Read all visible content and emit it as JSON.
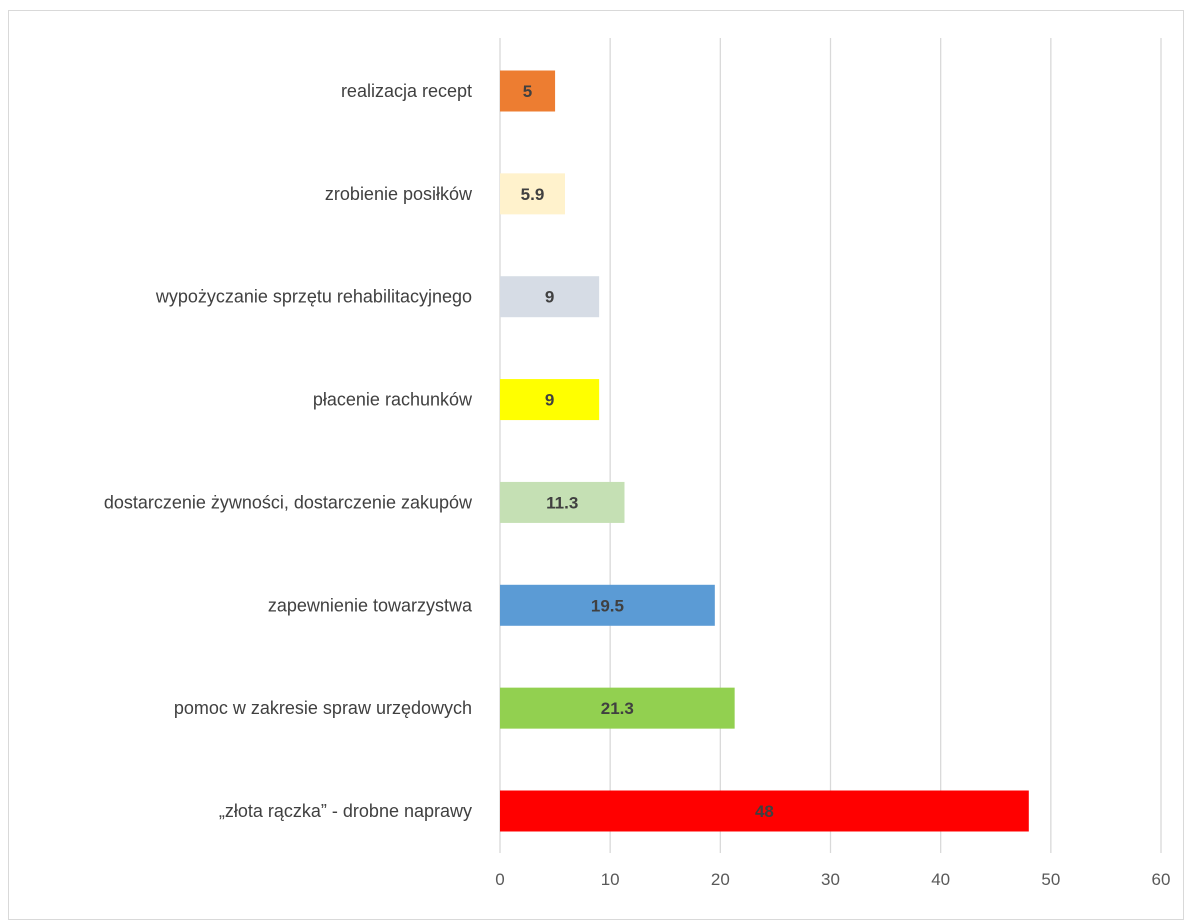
{
  "chart_data": {
    "type": "bar",
    "orientation": "horizontal",
    "title": "",
    "xlabel": "",
    "ylabel": "",
    "xlim": [
      0,
      60
    ],
    "ticks": [
      0,
      10,
      20,
      30,
      40,
      50,
      60
    ],
    "grid": true,
    "legend": "none",
    "categories": [
      "realizacja recept",
      "zrobienie posiłków",
      "wypożyczanie sprzętu rehabilitacyjnego",
      "płacenie rachunków",
      "dostarczenie żywności, dostarczenie zakupów",
      "zapewnienie towarzystwa",
      "pomoc w zakresie spraw urzędowych",
      "„złota rączka” - drobne naprawy"
    ],
    "values": [
      5,
      5.9,
      9,
      9,
      11.3,
      19.5,
      21.3,
      48
    ],
    "data_labels": [
      "5",
      "5.9",
      "9",
      "9",
      "11.3",
      "19.5",
      "21.3",
      "48"
    ],
    "colors": [
      "#ED7D31",
      "#FFF2CC",
      "#D6DCE5",
      "#FFFF00",
      "#C5E0B4",
      "#5B9BD5",
      "#92D050",
      "#FF0000"
    ]
  }
}
